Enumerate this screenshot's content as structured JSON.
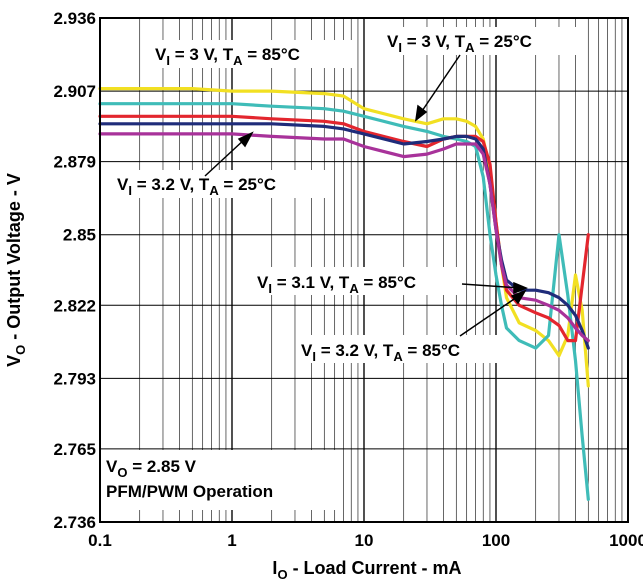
{
  "chart_data": {
    "type": "line",
    "x_scale": "log",
    "xlim": [
      0.1,
      1000
    ],
    "ylim": [
      2.736,
      2.936
    ],
    "xticks": [
      "0.1",
      "1",
      "10",
      "100",
      "1000"
    ],
    "yticks": [
      "2.736",
      "2.765",
      "2.793",
      "2.822",
      "2.85",
      "2.879",
      "2.907",
      "2.936"
    ],
    "xlabel": {
      "main": "I",
      "sub": "O",
      "rest": " - Load Current - mA"
    },
    "ylabel": {
      "main": "V",
      "sub": "O",
      "rest": " - Output Voltage - V"
    },
    "grid": true,
    "series": [
      {
        "color": "#f2e022",
        "x": [
          0.1,
          0.2,
          0.5,
          1,
          2,
          5,
          7,
          10,
          20,
          30,
          40,
          50,
          60,
          70,
          80,
          90,
          100,
          110,
          120,
          150,
          200,
          250,
          300,
          350,
          400,
          450,
          500
        ],
        "y": [
          2.908,
          2.908,
          2.908,
          2.907,
          2.907,
          2.906,
          2.905,
          2.9,
          2.896,
          2.894,
          2.896,
          2.896,
          2.895,
          2.893,
          2.888,
          2.876,
          2.855,
          2.838,
          2.825,
          2.815,
          2.812,
          2.808,
          2.802,
          2.81,
          2.834,
          2.82,
          2.79
        ]
      },
      {
        "color": "#3fbcb8",
        "x": [
          0.1,
          0.2,
          0.5,
          1,
          2,
          5,
          7,
          10,
          20,
          30,
          40,
          50,
          60,
          70,
          80,
          90,
          100,
          110,
          120,
          150,
          200,
          250,
          300,
          350,
          400,
          450,
          500
        ],
        "y": [
          2.902,
          2.902,
          2.902,
          2.902,
          2.901,
          2.9,
          2.899,
          2.897,
          2.893,
          2.891,
          2.889,
          2.888,
          2.887,
          2.885,
          2.873,
          2.85,
          2.834,
          2.822,
          2.813,
          2.808,
          2.805,
          2.81,
          2.85,
          2.826,
          2.8,
          2.77,
          2.745
        ]
      },
      {
        "color": "#e3262e",
        "x": [
          0.1,
          0.2,
          0.5,
          1,
          2,
          5,
          7,
          10,
          20,
          30,
          40,
          50,
          60,
          70,
          80,
          90,
          100,
          110,
          120,
          150,
          200,
          250,
          300,
          350,
          400,
          450,
          500
        ],
        "y": [
          2.897,
          2.897,
          2.897,
          2.897,
          2.896,
          2.895,
          2.894,
          2.891,
          2.887,
          2.885,
          2.888,
          2.889,
          2.889,
          2.889,
          2.887,
          2.878,
          2.855,
          2.838,
          2.828,
          2.822,
          2.819,
          2.817,
          2.814,
          2.808,
          2.808,
          2.83,
          2.85
        ]
      },
      {
        "color": "#1f2c7a",
        "x": [
          0.1,
          0.2,
          0.5,
          1,
          2,
          5,
          7,
          10,
          20,
          30,
          40,
          50,
          60,
          70,
          80,
          90,
          100,
          110,
          120,
          150,
          200,
          250,
          300,
          350,
          400,
          450,
          500
        ],
        "y": [
          2.894,
          2.894,
          2.894,
          2.894,
          2.894,
          2.893,
          2.892,
          2.89,
          2.886,
          2.887,
          2.888,
          2.889,
          2.889,
          2.888,
          2.884,
          2.87,
          2.852,
          2.84,
          2.832,
          2.828,
          2.828,
          2.827,
          2.825,
          2.822,
          2.818,
          2.812,
          2.805
        ]
      },
      {
        "color": "#a8329a",
        "x": [
          0.1,
          0.2,
          0.5,
          1,
          2,
          5,
          7,
          10,
          20,
          30,
          40,
          50,
          60,
          70,
          80,
          90,
          100,
          110,
          120,
          150,
          200,
          250,
          300,
          350,
          400,
          450,
          500
        ],
        "y": [
          2.89,
          2.89,
          2.89,
          2.89,
          2.889,
          2.888,
          2.888,
          2.885,
          2.881,
          2.882,
          2.884,
          2.886,
          2.886,
          2.886,
          2.882,
          2.87,
          2.852,
          2.838,
          2.83,
          2.825,
          2.824,
          2.822,
          2.82,
          2.817,
          2.813,
          2.81,
          2.808
        ]
      }
    ],
    "annotations": [
      {
        "id": "a1",
        "main": "V",
        "sub": "I",
        "mid": " = 3 V, T",
        "sub2": "A",
        "tail": " = 85°C"
      },
      {
        "id": "a2",
        "main": "V",
        "sub": "I",
        "mid": " = 3 V, T",
        "sub2": "A",
        "tail": " = 25°C"
      },
      {
        "id": "a3",
        "main": "V",
        "sub": "I",
        "mid": " = 3.2 V, T",
        "sub2": "A",
        "tail": " = 25°C"
      },
      {
        "id": "a4",
        "main": "V",
        "sub": "I",
        "mid": " = 3.1 V, T",
        "sub2": "A",
        "tail": " = 85°C"
      },
      {
        "id": "a5",
        "main": "V",
        "sub": "I",
        "mid": " = 3.2 V, T",
        "sub2": "A",
        "tail": " = 85°C"
      }
    ],
    "conditions": {
      "main": "V",
      "sub": "O",
      "rest": " = 2.85 V",
      "line2": "PFM/PWM Operation"
    }
  }
}
